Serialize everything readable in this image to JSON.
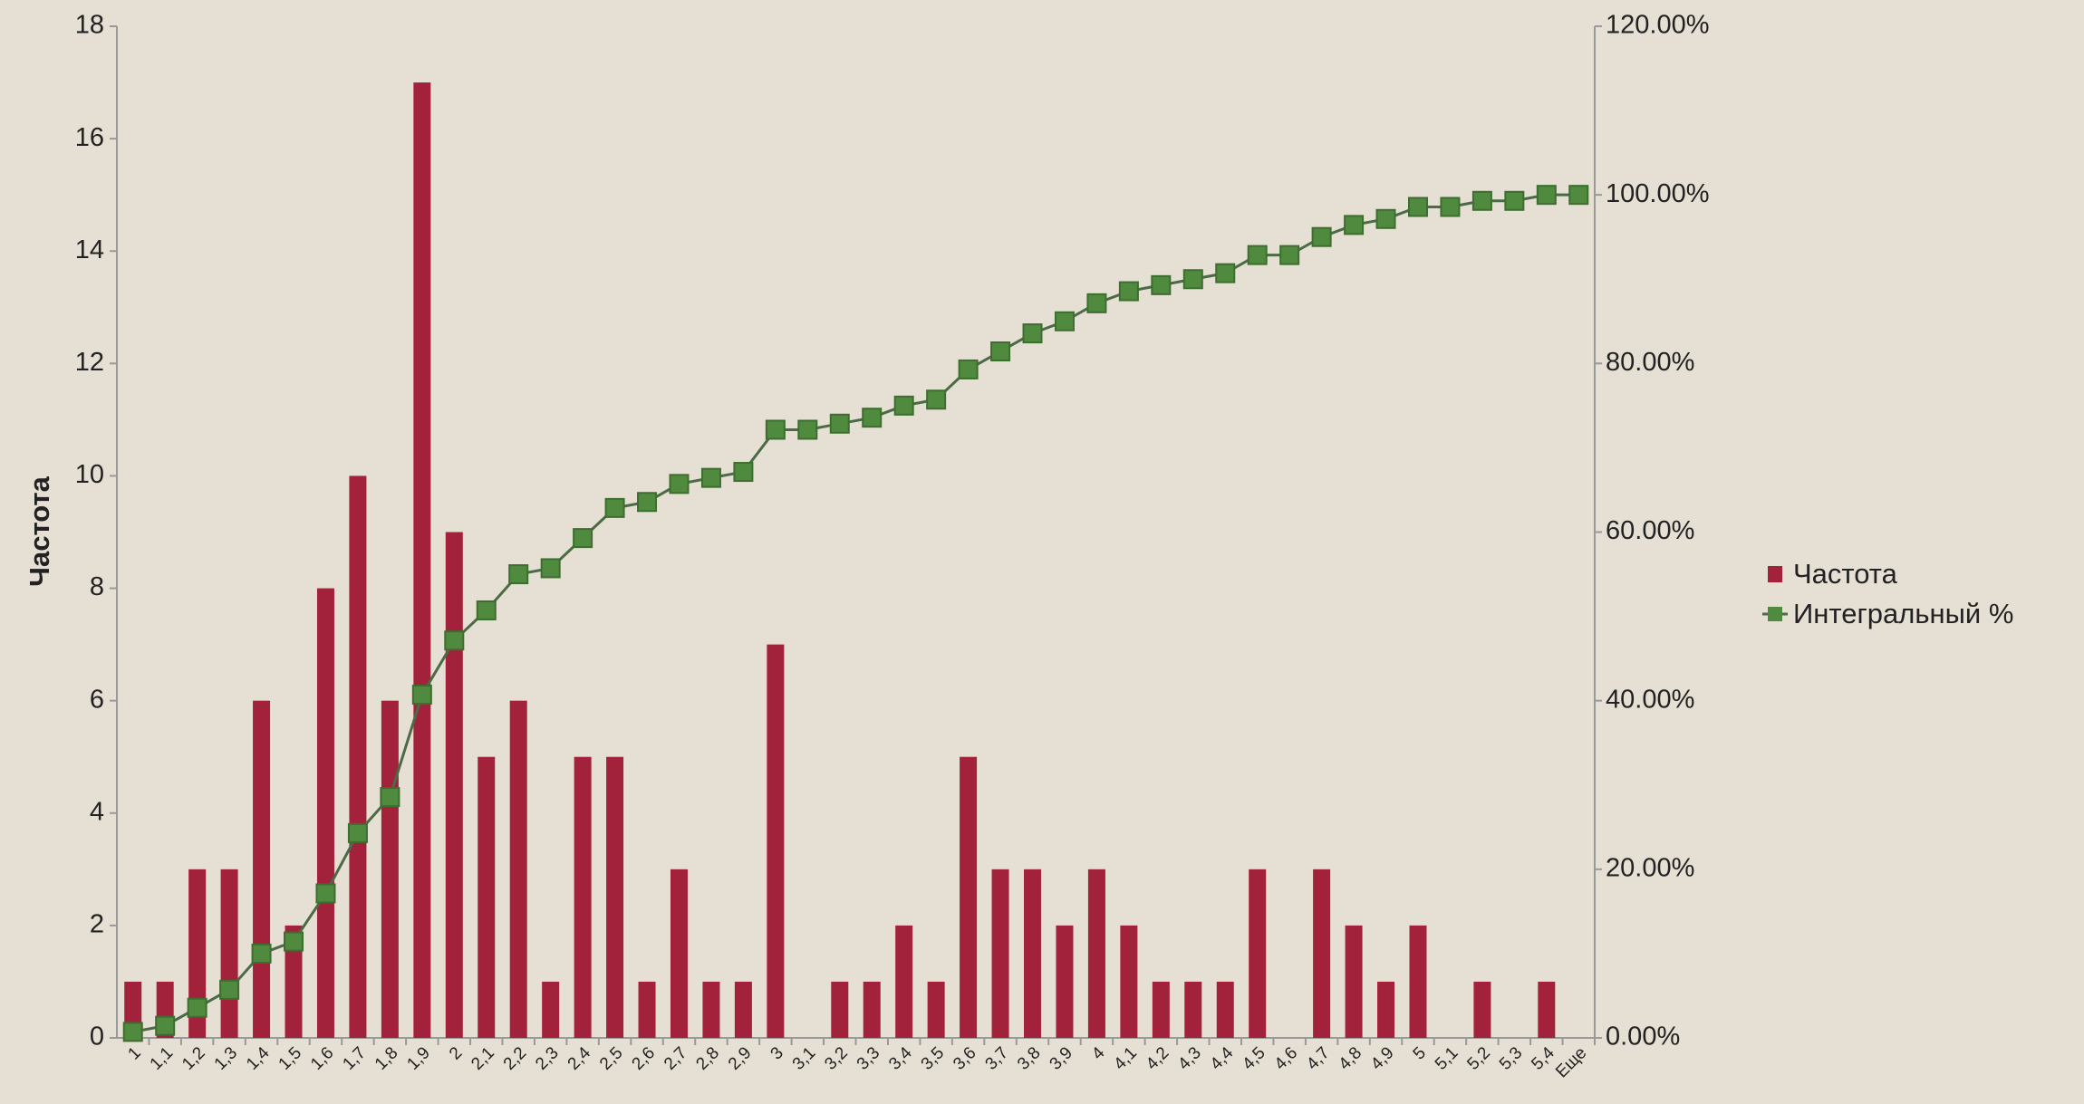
{
  "chart_data": {
    "type": "bar_line",
    "y_label": "Частота",
    "categories": [
      "1",
      "1,1",
      "1,2",
      "1,3",
      "1,4",
      "1,5",
      "1,6",
      "1,7",
      "1,8",
      "1,9",
      "2",
      "2,1",
      "2,2",
      "2,3",
      "2,4",
      "2,5",
      "2,6",
      "2,7",
      "2,8",
      "2,9",
      "3",
      "3,1",
      "3,2",
      "3,3",
      "3,4",
      "3,5",
      "3,6",
      "3,7",
      "3,8",
      "3,9",
      "4",
      "4,1",
      "4,2",
      "4,3",
      "4,4",
      "4,5",
      "4,6",
      "4,7",
      "4,8",
      "4,9",
      "5",
      "5,1",
      "5,2",
      "5,3",
      "5,4",
      "Еще"
    ],
    "series": [
      {
        "name": "Частота",
        "type": "bar",
        "color": "#a3223b",
        "values": [
          1,
          1,
          3,
          3,
          6,
          2,
          8,
          10,
          6,
          17,
          9,
          5,
          6,
          1,
          5,
          5,
          1,
          3,
          1,
          1,
          7,
          0,
          1,
          1,
          2,
          1,
          5,
          3,
          3,
          2,
          3,
          2,
          1,
          1,
          1,
          3,
          0,
          3,
          2,
          1,
          2,
          0,
          1,
          0,
          1,
          0
        ]
      },
      {
        "name": "Интегральный %",
        "type": "line",
        "axis": "y2",
        "color": "#4f8a3e",
        "line_color": "#4a6b45",
        "values": [
          0.71,
          1.43,
          3.57,
          5.71,
          10,
          11.43,
          17.14,
          24.29,
          28.57,
          40.71,
          47.14,
          50.71,
          55,
          55.71,
          59.29,
          62.86,
          63.57,
          65.71,
          66.43,
          67.14,
          72.14,
          72.14,
          72.86,
          73.57,
          75,
          75.71,
          79.29,
          81.43,
          83.57,
          85,
          87.14,
          88.57,
          89.29,
          90,
          90.71,
          92.86,
          92.86,
          95,
          96.43,
          97.14,
          98.57,
          98.57,
          99.29,
          99.29,
          100,
          100
        ]
      }
    ],
    "ylim": [
      0,
      18
    ],
    "yticks": [
      0,
      2,
      4,
      6,
      8,
      10,
      12,
      14,
      16,
      18
    ],
    "y2lim": [
      0,
      120
    ],
    "y2ticks": [
      {
        "value": 0,
        "label": "0.00%"
      },
      {
        "value": 20,
        "label": "20.00%"
      },
      {
        "value": 40,
        "label": "40.00%"
      },
      {
        "value": 60,
        "label": "60.00%"
      },
      {
        "value": 80,
        "label": "80.00%"
      },
      {
        "value": 100,
        "label": "100.00%"
      },
      {
        "value": 120,
        "label": "120.00%"
      }
    ],
    "legend": "right"
  }
}
